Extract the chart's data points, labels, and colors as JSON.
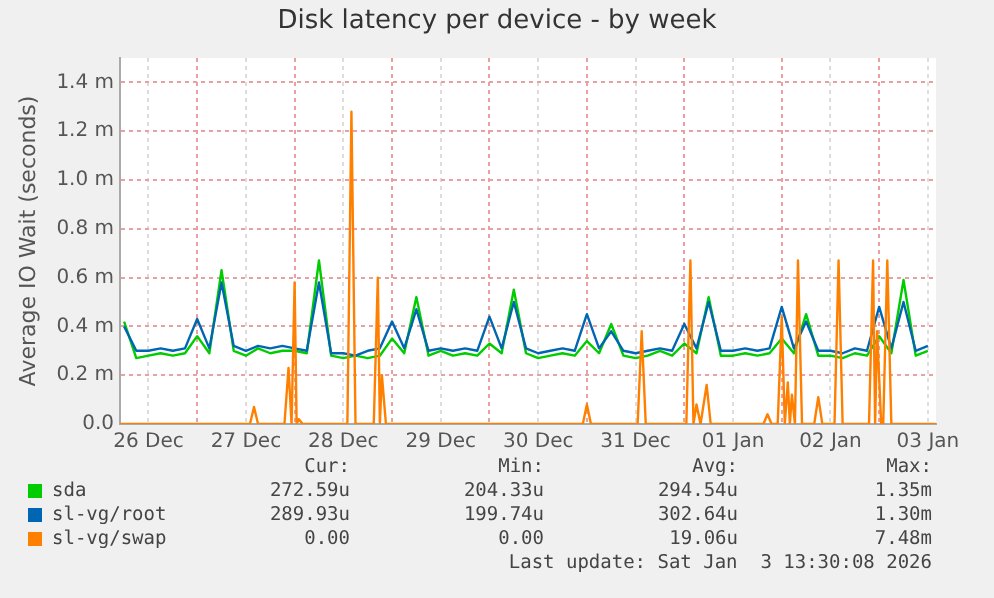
{
  "chart_data": {
    "type": "line",
    "title": "Disk latency per device - by week",
    "ylabel": "Average IO Wait (seconds)",
    "x": [
      "2025-12-26T06:00",
      "2025-12-26T09:00",
      "2025-12-26T12:00",
      "2025-12-26T15:00",
      "2025-12-26T18:00",
      "2025-12-26T21:00",
      "2025-12-27T00:00",
      "2025-12-27T03:00",
      "2025-12-27T06:00",
      "2025-12-27T09:00",
      "2025-12-27T12:00",
      "2025-12-27T15:00",
      "2025-12-27T18:00",
      "2025-12-27T21:00",
      "2025-12-28T00:00",
      "2025-12-28T03:00",
      "2025-12-28T06:00",
      "2025-12-28T09:00",
      "2025-12-28T12:00",
      "2025-12-28T15:00",
      "2025-12-28T18:00",
      "2025-12-28T21:00",
      "2025-12-29T00:00",
      "2025-12-29T03:00",
      "2025-12-29T06:00",
      "2025-12-29T09:00",
      "2025-12-29T12:00",
      "2025-12-29T15:00",
      "2025-12-29T18:00",
      "2025-12-29T21:00",
      "2025-12-30T00:00",
      "2025-12-30T03:00",
      "2025-12-30T06:00",
      "2025-12-30T09:00",
      "2025-12-30T12:00",
      "2025-12-30T15:00",
      "2025-12-30T18:00",
      "2025-12-30T21:00",
      "2025-12-31T00:00",
      "2025-12-31T03:00",
      "2025-12-31T06:00",
      "2025-12-31T09:00",
      "2025-12-31T12:00",
      "2025-12-31T15:00",
      "2025-12-31T18:00",
      "2025-12-31T21:00",
      "2026-01-01T00:00",
      "2026-01-01T03:00",
      "2026-01-01T06:00",
      "2026-01-01T09:00",
      "2026-01-01T12:00",
      "2026-01-01T15:00",
      "2026-01-01T18:00",
      "2026-01-01T21:00",
      "2026-01-02T00:00",
      "2026-01-02T03:00",
      "2026-01-02T06:00",
      "2026-01-02T09:00",
      "2026-01-02T12:00",
      "2026-01-02T15:00",
      "2026-01-02T18:00",
      "2026-01-02T21:00",
      "2026-01-03T00:00",
      "2026-01-03T03:00",
      "2026-01-03T06:00",
      "2026-01-03T09:00",
      "2026-01-03T12:00"
    ],
    "series": [
      {
        "name": "sda",
        "color": "#00cc00",
        "values": [
          0.42,
          0.27,
          0.28,
          0.29,
          0.28,
          0.29,
          0.36,
          0.29,
          0.63,
          0.3,
          0.28,
          0.31,
          0.29,
          0.3,
          0.3,
          0.29,
          0.67,
          0.28,
          0.27,
          0.28,
          0.27,
          0.28,
          0.35,
          0.29,
          0.52,
          0.28,
          0.3,
          0.28,
          0.29,
          0.28,
          0.33,
          0.29,
          0.55,
          0.29,
          0.27,
          0.28,
          0.29,
          0.28,
          0.34,
          0.29,
          0.41,
          0.28,
          0.27,
          0.28,
          0.3,
          0.28,
          0.33,
          0.29,
          0.52,
          0.28,
          0.28,
          0.29,
          0.28,
          0.29,
          0.35,
          0.29,
          0.45,
          0.28,
          0.28,
          0.27,
          0.29,
          0.28,
          0.36,
          0.29,
          0.59,
          0.28,
          0.3
        ]
      },
      {
        "name": "sl-vg/root",
        "color": "#0066b3",
        "values": [
          0.4,
          0.3,
          0.3,
          0.31,
          0.3,
          0.31,
          0.43,
          0.31,
          0.58,
          0.32,
          0.3,
          0.32,
          0.31,
          0.32,
          0.31,
          0.3,
          0.58,
          0.29,
          0.29,
          0.28,
          0.3,
          0.31,
          0.42,
          0.31,
          0.47,
          0.3,
          0.31,
          0.3,
          0.31,
          0.3,
          0.44,
          0.31,
          0.5,
          0.31,
          0.29,
          0.3,
          0.31,
          0.3,
          0.45,
          0.31,
          0.38,
          0.3,
          0.29,
          0.3,
          0.31,
          0.3,
          0.41,
          0.31,
          0.5,
          0.3,
          0.3,
          0.31,
          0.3,
          0.31,
          0.48,
          0.31,
          0.42,
          0.3,
          0.3,
          0.29,
          0.31,
          0.3,
          0.48,
          0.31,
          0.5,
          0.3,
          0.32
        ]
      },
      {
        "name": "sl-vg/swap",
        "color": "#ff8000",
        "x": [
          "2025-12-26T05:00",
          "2025-12-27T13:00",
          "2025-12-27T14:00",
          "2025-12-27T15:00",
          "2025-12-27T21:30",
          "2025-12-27T22:30",
          "2025-12-27T23:15",
          "2025-12-28T00:00",
          "2025-12-28T00:30",
          "2025-12-28T01:00",
          "2025-12-28T02:00",
          "2025-12-28T13:00",
          "2025-12-28T14:00",
          "2025-12-28T15:00",
          "2025-12-28T19:30",
          "2025-12-28T20:30",
          "2025-12-28T21:00",
          "2025-12-28T21:30",
          "2025-12-28T22:30",
          "2025-12-30T23:00",
          "2025-12-31T00:00",
          "2025-12-31T01:00",
          "2025-12-31T12:30",
          "2025-12-31T13:30",
          "2025-12-31T14:30",
          "2026-01-01T00:30",
          "2026-01-01T01:30",
          "2026-01-01T02:15",
          "2026-01-01T03:00",
          "2026-01-01T04:00",
          "2026-01-01T05:30",
          "2026-01-01T06:30",
          "2026-01-01T19:30",
          "2026-01-01T20:30",
          "2026-01-01T21:30",
          "2026-01-01T23:00",
          "2026-01-02T00:00",
          "2026-01-02T00:45",
          "2026-01-02T01:30",
          "2026-01-02T02:00",
          "2026-01-02T02:30",
          "2026-01-02T03:15",
          "2026-01-02T04:00",
          "2026-01-02T05:00",
          "2026-01-02T08:00",
          "2026-01-02T09:00",
          "2026-01-02T10:00",
          "2026-01-02T13:00",
          "2026-01-02T14:00",
          "2026-01-02T15:00",
          "2026-01-02T21:30",
          "2026-01-02T22:30",
          "2026-01-02T23:00",
          "2026-01-02T23:30",
          "2026-01-03T00:30",
          "2026-01-03T01:00",
          "2026-01-03T02:00",
          "2026-01-03T03:00",
          "2026-01-03T14:00"
        ],
        "values": [
          0,
          0,
          0.07,
          0,
          0,
          0.23,
          0,
          0.58,
          0,
          0.02,
          0,
          0,
          1.28,
          0,
          0,
          0.6,
          0,
          0.2,
          0,
          0,
          0.08,
          0,
          0,
          0.38,
          0,
          0,
          0.67,
          0,
          0.08,
          0,
          0.16,
          0,
          0,
          0.04,
          0,
          0,
          0.44,
          0,
          0.17,
          0,
          0.12,
          0,
          0.67,
          0,
          0,
          0.11,
          0,
          0,
          0.67,
          0,
          0,
          0.67,
          0,
          0.38,
          0,
          0,
          0.67,
          0,
          0
        ]
      }
    ],
    "xlim": [
      "2025-12-26T05:00",
      "2026-01-03T14:00"
    ],
    "xticks": [
      {
        "value": "2025-12-26T12:00",
        "label": "26 Dec"
      },
      {
        "value": "2025-12-27T00:00",
        "label": null
      },
      {
        "value": "2025-12-27T12:00",
        "label": "27 Dec"
      },
      {
        "value": "2025-12-28T00:00",
        "label": null
      },
      {
        "value": "2025-12-28T12:00",
        "label": "28 Dec"
      },
      {
        "value": "2025-12-29T00:00",
        "label": null
      },
      {
        "value": "2025-12-29T12:00",
        "label": "29 Dec"
      },
      {
        "value": "2025-12-30T00:00",
        "label": null
      },
      {
        "value": "2025-12-30T12:00",
        "label": "30 Dec"
      },
      {
        "value": "2025-12-31T00:00",
        "label": null
      },
      {
        "value": "2025-12-31T12:00",
        "label": "31 Dec"
      },
      {
        "value": "2026-01-01T00:00",
        "label": null
      },
      {
        "value": "2026-01-01T12:00",
        "label": "01 Jan"
      },
      {
        "value": "2026-01-02T00:00",
        "label": null
      },
      {
        "value": "2026-01-02T12:00",
        "label": "02 Jan"
      },
      {
        "value": "2026-01-03T00:00",
        "label": null
      },
      {
        "value": "2026-01-03T12:00",
        "label": "03 Jan"
      }
    ],
    "ylim": [
      0,
      1.5
    ],
    "yticks": [
      {
        "value": 0,
        "label": "0.0"
      },
      {
        "value": 0.2,
        "label": "0.2 m"
      },
      {
        "value": 0.4,
        "label": "0.4 m"
      },
      {
        "value": 0.6,
        "label": "0.6 m"
      },
      {
        "value": 0.8,
        "label": "0.8 m"
      },
      {
        "value": 1.0,
        "label": "1.0 m"
      },
      {
        "value": 1.2,
        "label": "1.2 m"
      },
      {
        "value": 1.4,
        "label": "1.4 m"
      }
    ],
    "grid": true,
    "legend": "bottom",
    "marker": "none",
    "line_style": "solid",
    "annotations": [
      "Cur:",
      "Min:",
      "Avg:",
      "Max:",
      "272.59u",
      "204.33u",
      "294.54u",
      "1.35m",
      "289.93u",
      "199.74u",
      "302.64u",
      "1.30m",
      "0.00",
      "0.00",
      "19.06u",
      "7.48m",
      "Last update: Sat Jan  3 13:30:08 2026"
    ]
  }
}
